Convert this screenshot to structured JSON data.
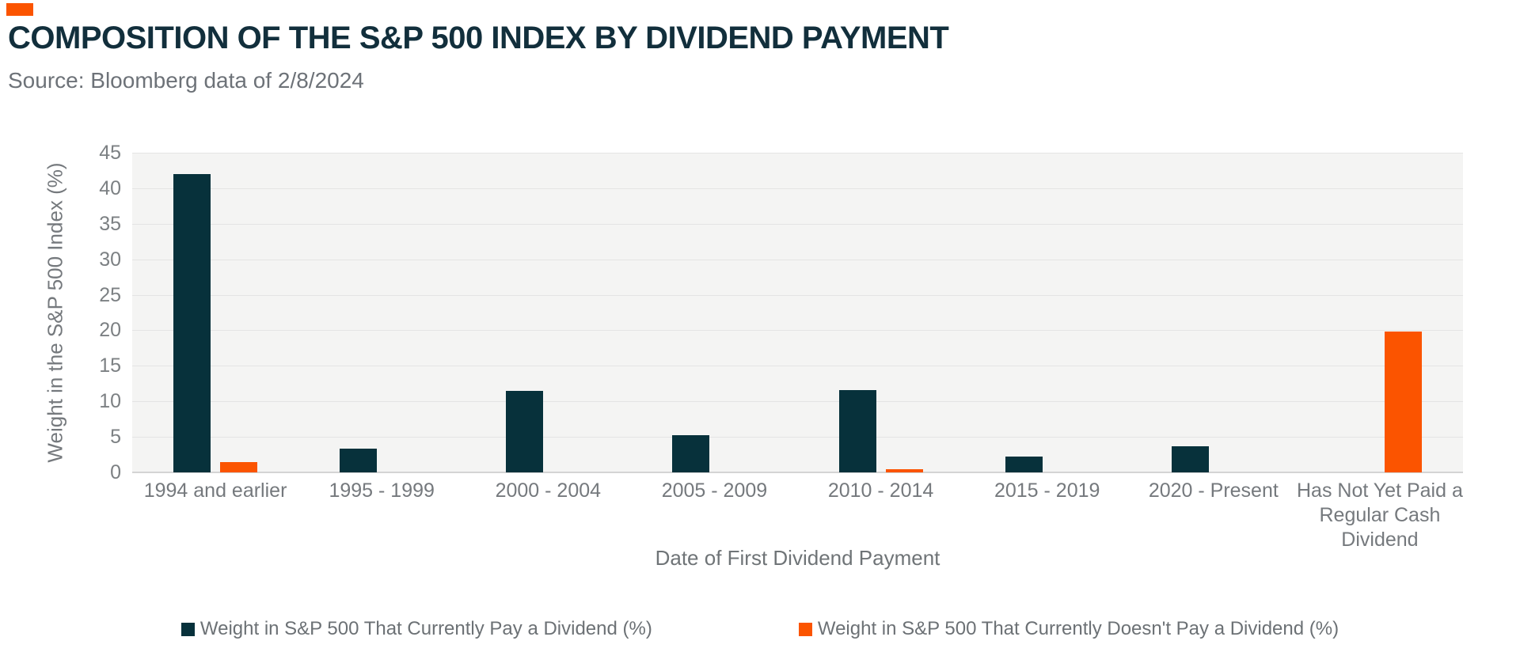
{
  "header": {
    "title": "COMPOSITION OF THE S&P 500 INDEX BY DIVIDEND PAYMENT",
    "source": "Source: Bloomberg data of 2/8/2024"
  },
  "colors": {
    "accent_orange": "#fb5400",
    "series_dark_teal": "#07313b",
    "title_text": "#122f3c",
    "muted_text": "#75797d",
    "plot_background": "#f4f4f3",
    "gridline": "#e4e4e4"
  },
  "chart_data": {
    "type": "bar",
    "title": "COMPOSITION OF THE S&P 500 INDEX BY DIVIDEND PAYMENT",
    "subtitle": "Source: Bloomberg data of 2/8/2024",
    "xlabel": "Date of First Dividend Payment",
    "ylabel": "Weight in the S&P 500 Index (%)",
    "ylim": [
      0,
      45
    ],
    "yticks": [
      45,
      40,
      35,
      30,
      25,
      20,
      15,
      10,
      5,
      0
    ],
    "grid": true,
    "legend_position": "bottom",
    "categories": [
      "1994 and earlier",
      "1995 - 1999",
      "2000 - 2004",
      "2005 - 2009",
      "2010 - 2014",
      "2015 - 2019",
      "2020 - Present",
      "Has Not Yet Paid a Regular Cash Dividend"
    ],
    "series": [
      {
        "name": "Weight in S&P 500 That Currently Pay a Dividend (%)",
        "color": "#07313b",
        "values": [
          42,
          3.3,
          11.5,
          5.2,
          11.6,
          2.2,
          3.7,
          0
        ]
      },
      {
        "name": "Weight in S&P 500 That Currently Doesn't Pay a Dividend (%)",
        "color": "#fb5400",
        "values": [
          1.5,
          0,
          0,
          0,
          0.4,
          0,
          0,
          19.8
        ]
      }
    ]
  }
}
